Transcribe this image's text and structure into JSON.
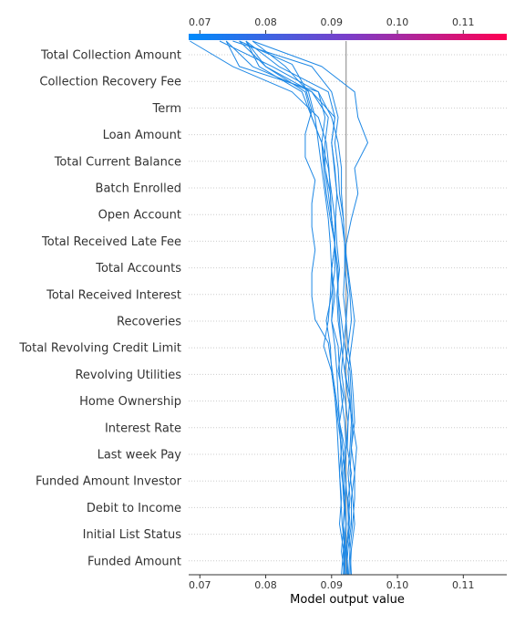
{
  "chart_data": {
    "type": "line",
    "xlabel": "Model output value",
    "xlim": [
      0.0683,
      0.1166
    ],
    "x_ticks": [
      "0.07",
      "0.08",
      "0.09",
      "0.10",
      "0.11"
    ],
    "x_tick_values": [
      0.07,
      0.08,
      0.09,
      0.1,
      0.11
    ],
    "base_value": 0.0922,
    "features": [
      "Total Collection Amount",
      "Collection Recovery Fee",
      "Term",
      "Loan Amount",
      "Total Current Balance",
      "Batch Enrolled",
      "Open Account",
      "Total Received Late Fee",
      "Total Accounts",
      "Total Received Interest",
      "Recoveries",
      "Total Revolving Credit Limit",
      "Revolving Utilities",
      "Home Ownership",
      "Interest Rate",
      "Last week Pay",
      "Funded Amount Investor",
      "Debit to Income",
      "Initial List Status",
      "Funded Amount"
    ],
    "colorbar": {
      "low_color": "#008bfb",
      "mid_color": "#7a3ec9",
      "high_color": "#ff0052"
    },
    "line_color": "#1e88e5",
    "series": [
      {
        "values": [
          0.092,
          0.0921,
          0.0918,
          0.092,
          0.0915,
          0.092,
          0.0912,
          0.0918,
          0.091,
          0.0915,
          0.091,
          0.0908,
          0.0912,
          0.0908,
          0.0906,
          0.0908,
          0.0904,
          0.09,
          0.0905,
          0.087,
          0.08,
          0.077
        ]
      },
      {
        "values": [
          0.0925,
          0.0923,
          0.0928,
          0.0925,
          0.093,
          0.0924,
          0.0925,
          0.0928,
          0.092,
          0.0925,
          0.093,
          0.0928,
          0.0924,
          0.092,
          0.0918,
          0.0915,
          0.0915,
          0.091,
          0.09,
          0.088,
          0.081,
          0.073
        ]
      },
      {
        "values": [
          0.0918,
          0.092,
          0.0922,
          0.092,
          0.0918,
          0.0922,
          0.092,
          0.0915,
          0.0912,
          0.091,
          0.09,
          0.0905,
          0.09,
          0.0905,
          0.0905,
          0.09,
          0.0895,
          0.0885,
          0.087,
          0.086,
          0.08,
          0.076
        ]
      },
      {
        "values": [
          0.093,
          0.0928,
          0.0932,
          0.0935,
          0.0935,
          0.093,
          0.0932,
          0.093,
          0.0928,
          0.092,
          0.0915,
          0.091,
          0.091,
          0.0905,
          0.09,
          0.0898,
          0.0896,
          0.0892,
          0.088,
          0.084,
          0.075,
          0.0685
        ]
      },
      {
        "values": [
          0.0922,
          0.0925,
          0.093,
          0.093,
          0.0935,
          0.0938,
          0.0932,
          0.0925,
          0.092,
          0.0915,
          0.0912,
          0.091,
          0.0908,
          0.0905,
          0.09,
          0.0895,
          0.089,
          0.0885,
          0.087,
          0.0855,
          0.079,
          0.077
        ]
      },
      {
        "values": [
          0.0915,
          0.0918,
          0.0912,
          0.0915,
          0.0912,
          0.0915,
          0.091,
          0.0905,
          0.09,
          0.0898,
          0.0892,
          0.09,
          0.0905,
          0.0905,
          0.09,
          0.0898,
          0.089,
          0.089,
          0.0895,
          0.087,
          0.078,
          0.074
        ]
      },
      {
        "values": [
          0.0928,
          0.093,
          0.0935,
          0.0932,
          0.0928,
          0.093,
          0.0935,
          0.0933,
          0.093,
          0.0925,
          0.0922,
          0.0918,
          0.092,
          0.0922,
          0.093,
          0.094,
          0.0935,
          0.0955,
          0.094,
          0.0935,
          0.0885,
          0.078
        ]
      },
      {
        "values": [
          0.092,
          0.0915,
          0.0918,
          0.092,
          0.0922,
          0.0918,
          0.0915,
          0.091,
          0.0905,
          0.09,
          0.0895,
          0.0875,
          0.087,
          0.087,
          0.0875,
          0.087,
          0.087,
          0.0875,
          0.086,
          0.086,
          0.087,
          0.086,
          0.084,
          0.076
        ]
      },
      {
        "values": [
          0.0918,
          0.092,
          0.0916,
          0.0914,
          0.0912,
          0.091,
          0.0908,
          0.0905,
          0.09,
          0.0888,
          0.0895,
          0.0898,
          0.09,
          0.0905,
          0.0898,
          0.0892,
          0.0888,
          0.0885,
          0.089,
          0.088,
          0.076,
          0.074
        ]
      },
      {
        "values": [
          0.0924,
          0.0922,
          0.0926,
          0.0924,
          0.092,
          0.0922,
          0.0925,
          0.092,
          0.0915,
          0.0918,
          0.0922,
          0.0925,
          0.092,
          0.092,
          0.0915,
          0.0908,
          0.0905,
          0.09,
          0.0905,
          0.0895,
          0.082,
          0.077
        ]
      },
      {
        "values": [
          0.0926,
          0.0928,
          0.0925,
          0.0928,
          0.0925,
          0.0928,
          0.093,
          0.0928,
          0.0925,
          0.093,
          0.0935,
          0.093,
          0.0925,
          0.092,
          0.0918,
          0.0912,
          0.091,
          0.0905,
          0.091,
          0.09,
          0.087,
          0.075
        ]
      },
      {
        "values": [
          0.092,
          0.0918,
          0.0922,
          0.0918,
          0.0916,
          0.0914,
          0.0912,
          0.091,
          0.0908,
          0.0905,
          0.09,
          0.0902,
          0.09,
          0.0898,
          0.0895,
          0.089,
          0.0885,
          0.088,
          0.0875,
          0.0865,
          0.083,
          0.078
        ]
      }
    ]
  }
}
